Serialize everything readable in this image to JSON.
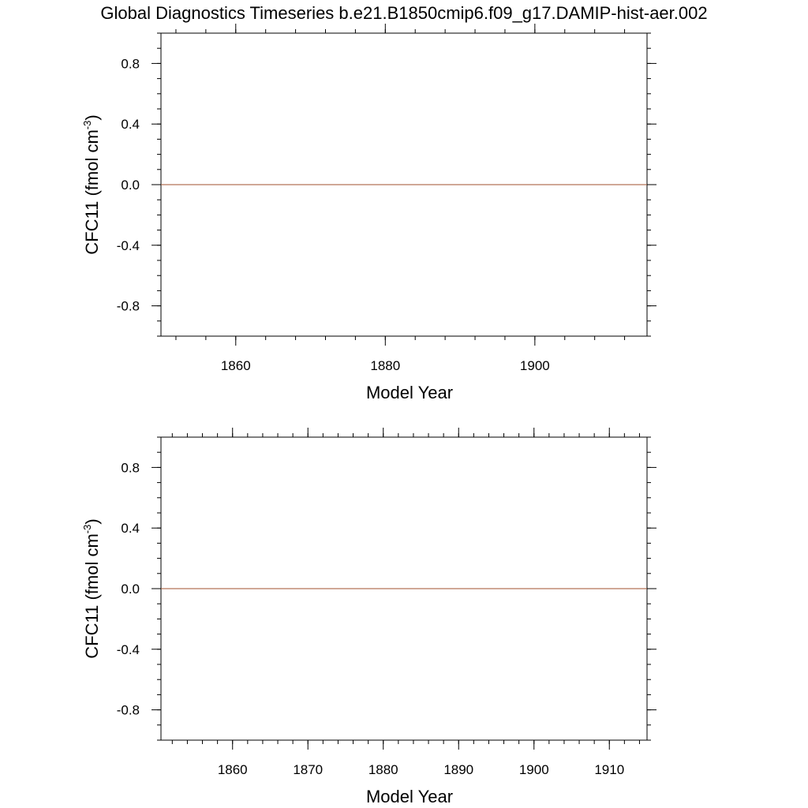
{
  "figure_title": "Global Diagnostics Timeseries b.e21.B1850cmip6.f09_g17.DAMIP-hist-aer.002",
  "colors": {
    "series_line": "#a0522d",
    "axes": "#000000",
    "background": "#ffffff"
  },
  "chart_data": [
    {
      "type": "line",
      "xlabel": "Model Year",
      "ylabel_main": "CFC11 (fmol cm",
      "ylabel_sup": "-3",
      "ylabel_close": ")",
      "xlim": [
        1850,
        1915
      ],
      "ylim": [
        -1.0,
        1.0
      ],
      "x_major_ticks": [
        1860,
        1880,
        1900
      ],
      "x_tick_labels": [
        "1860",
        "1880",
        "1900"
      ],
      "x_minor_step": 4,
      "y_major_ticks": [
        0.8,
        0.4,
        0.0,
        -0.4,
        -0.8
      ],
      "y_tick_labels": [
        "0.8",
        "0.4",
        "0.0",
        "-0.4",
        "-0.8"
      ],
      "y_minor_step": 0.1,
      "series": [
        {
          "x": [
            1850,
            1915
          ],
          "y": [
            0.0,
            0.0
          ]
        }
      ],
      "grid": false
    },
    {
      "type": "line",
      "xlabel": "Model Year",
      "ylabel_main": "CFC11 (fmol cm",
      "ylabel_sup": "-3",
      "ylabel_close": ")",
      "xlim": [
        1850.5,
        1915
      ],
      "ylim": [
        -1.0,
        1.0
      ],
      "x_major_ticks": [
        1860,
        1870,
        1880,
        1890,
        1900,
        1910
      ],
      "x_tick_labels": [
        "1860",
        "1870",
        "1880",
        "1890",
        "1900",
        "1910"
      ],
      "x_minor_step": 2,
      "y_major_ticks": [
        0.8,
        0.4,
        0.0,
        -0.4,
        -0.8
      ],
      "y_tick_labels": [
        "0.8",
        "0.4",
        "0.0",
        "-0.4",
        "-0.8"
      ],
      "y_minor_step": 0.1,
      "series": [
        {
          "x": [
            1850.5,
            1915
          ],
          "y": [
            0.0,
            0.0
          ]
        }
      ],
      "grid": false
    }
  ]
}
